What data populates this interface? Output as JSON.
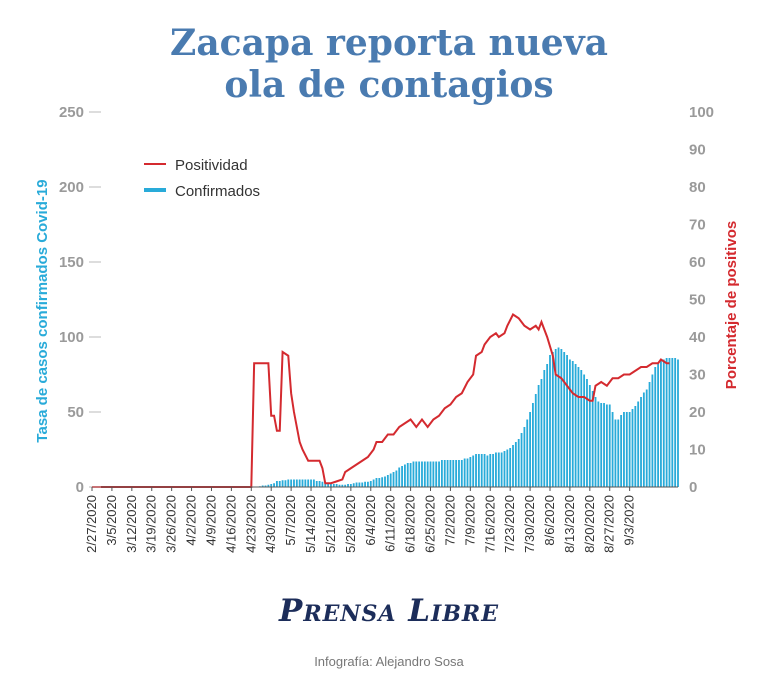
{
  "title": {
    "line1": "Zacapa reporta nueva",
    "line2": "ola de contagios"
  },
  "logo": "Prensa Libre",
  "credit": "Infografía: Alejandro Sosa",
  "colors": {
    "title": "#4a7bb0",
    "confirmados": "#29abd9",
    "positividad": "#d42a2f",
    "logo": "#1c2d5a"
  },
  "chart_data": {
    "type": "bar+line",
    "ylabel": "Tasa de casos confirmados Covid-19",
    "y2label": "Porcentaje de positivos",
    "ylim": [
      0,
      250
    ],
    "y2lim": [
      0,
      100
    ],
    "yticks": [
      "0",
      "50",
      "100",
      "150",
      "200",
      "250"
    ],
    "y2ticks": [
      "0",
      "10",
      "20",
      "30",
      "40",
      "50",
      "60",
      "70",
      "80",
      "90",
      "100"
    ],
    "legend": {
      "position": "top-left",
      "entries": [
        "Positividad",
        "Confirmados"
      ]
    },
    "x_start": "2/27/2020",
    "x_end": "9/3/2020",
    "x_tick_labels": [
      "2/27/2020",
      "3/5/2020",
      "3/12/2020",
      "3/19/2020",
      "3/26/2020",
      "4/2/2020",
      "4/9/2020",
      "4/16/2020",
      "4/23/2020",
      "4/30/2020",
      "5/7/2020",
      "5/14/2020",
      "5/21/2020",
      "5/28/2020",
      "6/4/2020",
      "6/11/2020",
      "6/18/2020",
      "6/25/2020",
      "7/2/2020",
      "7/9/2020",
      "7/16/2020",
      "7/23/2020",
      "7/30/2020",
      "8/6/2020",
      "8/13/2020",
      "8/20/2020",
      "8/27/2020",
      "9/3/2020"
    ],
    "series": [
      {
        "name": "Confirmados",
        "type": "bar",
        "axis": "left",
        "values": [
          0,
          0,
          0,
          0,
          0,
          0,
          0,
          0,
          0,
          0,
          0,
          0,
          0,
          0,
          0,
          0,
          0,
          0,
          0,
          0,
          0,
          0,
          0,
          0,
          0,
          0,
          0,
          0,
          0,
          0,
          0,
          0,
          0,
          0,
          0,
          0,
          0,
          0,
          0,
          0,
          0,
          0,
          0,
          0,
          0,
          0,
          0,
          0,
          0,
          0,
          0,
          0,
          0,
          0,
          0,
          0,
          0,
          0,
          0,
          0.5,
          1,
          1,
          1.5,
          2,
          2.5,
          4,
          4,
          4.5,
          4.5,
          5,
          5,
          5,
          5,
          5,
          5,
          5,
          5,
          5,
          5,
          4,
          4,
          3.5,
          3,
          2.5,
          2,
          2,
          2,
          1.5,
          1.5,
          1.5,
          2,
          2,
          2.5,
          3,
          3,
          3,
          3.5,
          3.5,
          4,
          5,
          6,
          6,
          6.5,
          7,
          8,
          9,
          10,
          11,
          13,
          14,
          15,
          16,
          16,
          17,
          17,
          17,
          17,
          17,
          17,
          17,
          17,
          17,
          17,
          18,
          18,
          18,
          18,
          18,
          18,
          18,
          18,
          19,
          19,
          20,
          21,
          22,
          22,
          22,
          22,
          21,
          22,
          22,
          23,
          23,
          23,
          24,
          25,
          26,
          28,
          30,
          32,
          36,
          40,
          45,
          50,
          56,
          62,
          68,
          72,
          78,
          82,
          88,
          90,
          92,
          93,
          92,
          90,
          88,
          85,
          84,
          82,
          80,
          78,
          75,
          72,
          68,
          64,
          60,
          57,
          56,
          56,
          55,
          55,
          50,
          45,
          45,
          48,
          50,
          50,
          50,
          52,
          54,
          57,
          60,
          63,
          65,
          70,
          75,
          80,
          82,
          84,
          85,
          86,
          86,
          86,
          86,
          85
        ]
      },
      {
        "name": "Positividad",
        "type": "line",
        "axis": "right",
        "points": [
          [
            0,
            0
          ],
          [
            56,
            0
          ],
          [
            57,
            33
          ],
          [
            62,
            33
          ],
          [
            63,
            19
          ],
          [
            64,
            19
          ],
          [
            65,
            15
          ],
          [
            66,
            15
          ],
          [
            67,
            36
          ],
          [
            69,
            35
          ],
          [
            70,
            25
          ],
          [
            71,
            20
          ],
          [
            73,
            12
          ],
          [
            74,
            10
          ],
          [
            76,
            7
          ],
          [
            80,
            7
          ],
          [
            81,
            5
          ],
          [
            82,
            1
          ],
          [
            84,
            1
          ],
          [
            86,
            1.5
          ],
          [
            88,
            2
          ],
          [
            89,
            4
          ],
          [
            91,
            5
          ],
          [
            93,
            6
          ],
          [
            95,
            7
          ],
          [
            97,
            8
          ],
          [
            99,
            10
          ],
          [
            100,
            12
          ],
          [
            102,
            12
          ],
          [
            104,
            14
          ],
          [
            106,
            14
          ],
          [
            108,
            16
          ],
          [
            110,
            17
          ],
          [
            112,
            18
          ],
          [
            114,
            16
          ],
          [
            116,
            18
          ],
          [
            118,
            16
          ],
          [
            120,
            18
          ],
          [
            122,
            19
          ],
          [
            124,
            21
          ],
          [
            126,
            22
          ],
          [
            128,
            24
          ],
          [
            130,
            25
          ],
          [
            132,
            28
          ],
          [
            134,
            30
          ],
          [
            135,
            35
          ],
          [
            137,
            36
          ],
          [
            138,
            38
          ],
          [
            140,
            40
          ],
          [
            142,
            41
          ],
          [
            143,
            40
          ],
          [
            145,
            41
          ],
          [
            146,
            43
          ],
          [
            148,
            46
          ],
          [
            150,
            45
          ],
          [
            152,
            43
          ],
          [
            154,
            42
          ],
          [
            156,
            43
          ],
          [
            157,
            42
          ],
          [
            158,
            44
          ],
          [
            160,
            40
          ],
          [
            162,
            35
          ],
          [
            163,
            30
          ],
          [
            165,
            29
          ],
          [
            167,
            27
          ],
          [
            169,
            25
          ],
          [
            171,
            24
          ],
          [
            173,
            24
          ],
          [
            175,
            23
          ],
          [
            176,
            23
          ],
          [
            177,
            27
          ],
          [
            179,
            28
          ],
          [
            181,
            27
          ],
          [
            183,
            29
          ],
          [
            185,
            29
          ],
          [
            187,
            30
          ],
          [
            189,
            30
          ],
          [
            191,
            31
          ],
          [
            193,
            32
          ],
          [
            195,
            32
          ],
          [
            197,
            33
          ],
          [
            199,
            33
          ],
          [
            200,
            34
          ],
          [
            202,
            33
          ],
          [
            203,
            33
          ]
        ]
      }
    ]
  }
}
